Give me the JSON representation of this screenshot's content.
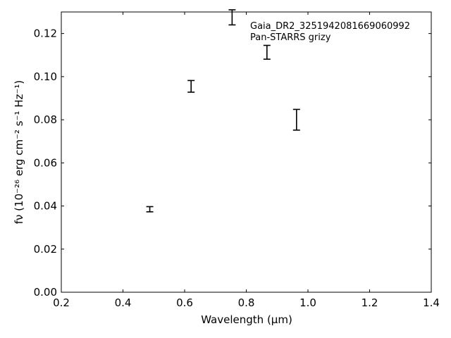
{
  "chart_data": {
    "type": "errorbar",
    "title": "",
    "xlabel": "Wavelength",
    "xlabel_unit": "(μm)",
    "ylabel_html": "fν (10⁻²⁶ erg cm⁻² s⁻¹ Hz⁻¹)",
    "xlim": [
      0.2,
      1.4
    ],
    "ylim": [
      0.0,
      0.13
    ],
    "x_ticks": [
      "0.2",
      "0.4",
      "0.6",
      "0.8",
      "1.0",
      "1.2",
      "1.4"
    ],
    "y_ticks": [
      "0.00",
      "0.02",
      "0.04",
      "0.06",
      "0.08",
      "0.10",
      "0.12"
    ],
    "annotation": [
      "Gaia_DR2_3251942081669060992",
      "Pan-STARRS grizy"
    ],
    "series": [
      {
        "points": [
          {
            "x": 0.487,
            "y": 0.0385,
            "yerr": 0.0012
          },
          {
            "x": 0.621,
            "y": 0.0955,
            "yerr": 0.0027
          },
          {
            "x": 0.754,
            "y": 0.1275,
            "yerr": 0.0035
          },
          {
            "x": 0.867,
            "y": 0.1113,
            "yerr": 0.0032
          },
          {
            "x": 0.963,
            "y": 0.08,
            "yerr": 0.0048
          }
        ]
      }
    ],
    "grid": false,
    "tick_direction": "in",
    "color": "#000000"
  }
}
